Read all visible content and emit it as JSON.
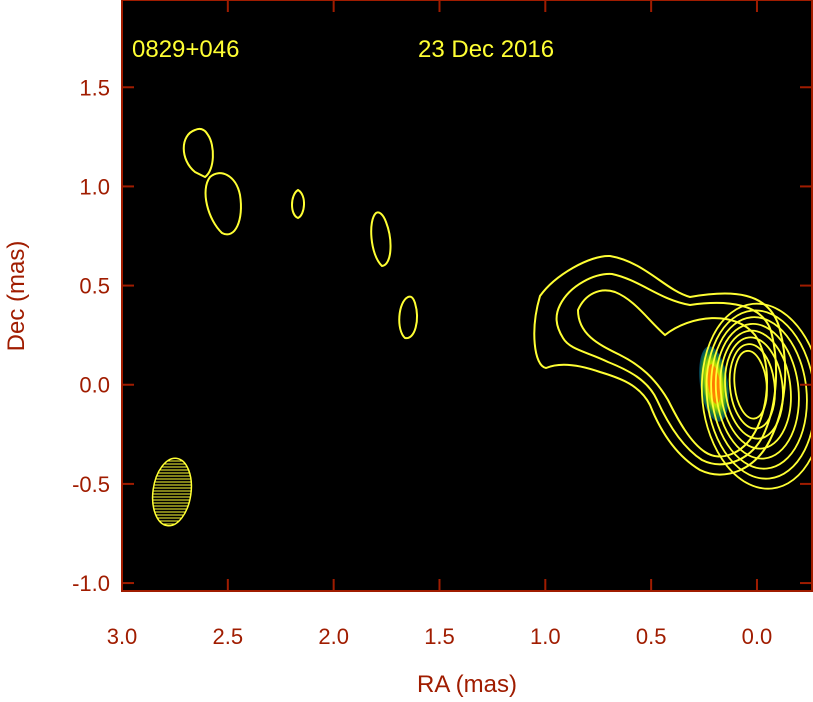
{
  "chart_data": {
    "type": "contour",
    "source_name": "0829+046",
    "date": "23 Dec 2016",
    "xlabel": "RA (mas)",
    "ylabel": "Dec (mas)",
    "xlim": [
      3.0,
      -0.26
    ],
    "ylim": [
      -1.04,
      1.94
    ],
    "x_ticks": [
      "3.0",
      "2.5",
      "2.0",
      "1.5",
      "1.0",
      "0.5",
      "0.0"
    ],
    "y_ticks": [
      "1.5",
      "1.0",
      "0.5",
      "0.0",
      "-0.5",
      "-1.0"
    ],
    "x_tick_values": [
      3.0,
      2.5,
      2.0,
      1.5,
      1.0,
      0.5,
      0.0
    ],
    "y_tick_values": [
      1.5,
      1.0,
      0.5,
      0.0,
      -0.5,
      -1.0
    ],
    "core": {
      "ra": 0.03,
      "dec": 0.0
    },
    "beam": {
      "ra": 2.76,
      "dec": -0.55,
      "major_axis_mas": 0.34,
      "minor_axis_mas": 0.18,
      "position_angle_deg": 8
    },
    "core_contour_levels": 8,
    "jet_components": [
      {
        "ra": 2.68,
        "dec": 1.18
      },
      {
        "ra": 2.55,
        "dec": 0.93
      },
      {
        "ra": 2.15,
        "dec": 0.91
      },
      {
        "ra": 1.73,
        "dec": 0.73
      },
      {
        "ra": 1.6,
        "dec": 0.34
      }
    ],
    "colors": {
      "background": "#000000",
      "axes": "#a01c00",
      "contours": "#ffff33",
      "header": "#ffff33"
    }
  }
}
